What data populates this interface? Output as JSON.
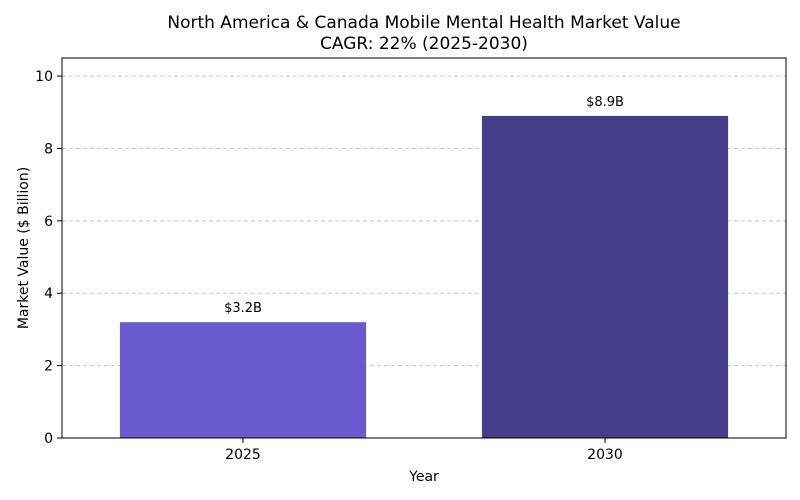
{
  "chart_data": {
    "type": "bar",
    "title": "North America & Canada Mobile Mental Health Market Value",
    "subtitle": "CAGR: 22% (2025-2030)",
    "xlabel": "Year",
    "ylabel": "Market Value ($ Billion)",
    "categories": [
      "2025",
      "2030"
    ],
    "values": [
      3.2,
      8.9
    ],
    "data_labels": [
      "$3.2B",
      "$8.9B"
    ],
    "bar_colors": [
      "#6a5acd",
      "#483d8b"
    ],
    "ylim": [
      0,
      10.5
    ],
    "yticks": [
      0,
      2,
      4,
      6,
      8,
      10
    ],
    "grid": true
  }
}
